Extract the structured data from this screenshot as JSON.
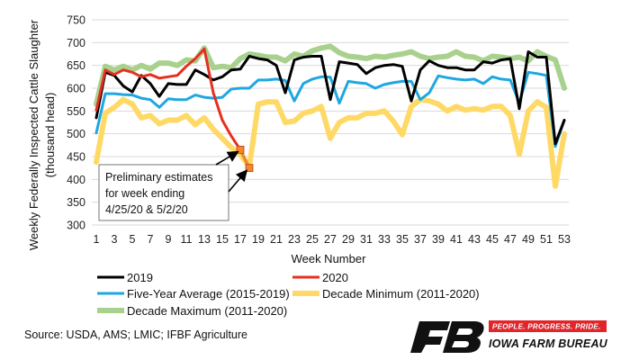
{
  "chart_data": {
    "type": "line",
    "ylabel": "Weekly Federally Inspected Cattle Slaughter",
    "ylabel_units": "(thousand head)",
    "xlabel": "Week Number",
    "ylim": [
      300,
      750
    ],
    "y_ticks": [
      300,
      350,
      400,
      450,
      500,
      550,
      600,
      650,
      700,
      750
    ],
    "xlim": [
      1,
      53
    ],
    "x_ticks": [
      1,
      3,
      5,
      7,
      9,
      11,
      13,
      15,
      17,
      19,
      21,
      23,
      25,
      27,
      29,
      31,
      33,
      35,
      37,
      39,
      41,
      43,
      45,
      47,
      49,
      51,
      53
    ],
    "series": [
      {
        "name": "Decade Maximum (2011-2020)",
        "color": "#a9d18e",
        "x": [
          1,
          2,
          3,
          4,
          5,
          6,
          7,
          8,
          9,
          10,
          11,
          12,
          13,
          14,
          15,
          16,
          17,
          18,
          19,
          20,
          21,
          22,
          23,
          24,
          25,
          26,
          27,
          28,
          29,
          30,
          31,
          32,
          33,
          34,
          35,
          36,
          37,
          38,
          39,
          40,
          41,
          42,
          43,
          44,
          45,
          46,
          47,
          48,
          49,
          50,
          51,
          52,
          53
        ],
        "values": [
          565,
          648,
          640,
          648,
          640,
          650,
          642,
          655,
          655,
          650,
          662,
          660,
          688,
          645,
          648,
          645,
          665,
          675,
          672,
          668,
          668,
          660,
          675,
          670,
          682,
          688,
          692,
          678,
          670,
          668,
          665,
          670,
          668,
          672,
          675,
          680,
          670,
          665,
          668,
          670,
          680,
          670,
          668,
          660,
          670,
          668,
          665,
          668,
          660,
          680,
          670,
          662,
          600
        ]
      },
      {
        "name": "Decade Minimum (2011-2020)",
        "color": "#ffd966",
        "x": [
          1,
          2,
          3,
          4,
          5,
          6,
          7,
          8,
          9,
          10,
          11,
          12,
          13,
          14,
          15,
          16,
          17,
          18,
          19,
          20,
          21,
          22,
          23,
          24,
          25,
          26,
          27,
          28,
          29,
          30,
          31,
          32,
          33,
          34,
          35,
          36,
          37,
          38,
          39,
          40,
          41,
          42,
          43,
          44,
          45,
          46,
          47,
          48,
          49,
          50,
          51,
          52,
          53
        ],
        "values": [
          438,
          545,
          558,
          575,
          565,
          535,
          540,
          522,
          530,
          530,
          540,
          520,
          535,
          510,
          490,
          470,
          455,
          428,
          565,
          570,
          570,
          525,
          528,
          545,
          550,
          560,
          490,
          525,
          535,
          535,
          545,
          545,
          550,
          528,
          498,
          560,
          575,
          572,
          565,
          550,
          560,
          552,
          555,
          552,
          560,
          560,
          540,
          455,
          550,
          570,
          558,
          385,
          500
        ]
      },
      {
        "name": "Five-Year Average (2015-2019)",
        "color": "#1fa7e1",
        "x": [
          1,
          2,
          3,
          4,
          5,
          6,
          7,
          8,
          9,
          10,
          11,
          12,
          13,
          14,
          15,
          16,
          17,
          18,
          19,
          20,
          21,
          22,
          23,
          24,
          25,
          26,
          27,
          28,
          29,
          30,
          31,
          32,
          33,
          34,
          35,
          36,
          37,
          38,
          39,
          40,
          41,
          42,
          43,
          44,
          45,
          46,
          47,
          48,
          49,
          50,
          51,
          52,
          53
        ],
        "values": [
          502,
          588,
          588,
          586,
          585,
          578,
          575,
          558,
          577,
          575,
          575,
          585,
          580,
          578,
          580,
          598,
          600,
          600,
          618,
          618,
          620,
          617,
          572,
          610,
          620,
          625,
          624,
          567,
          615,
          612,
          610,
          600,
          608,
          612,
          615,
          615,
          575,
          590,
          627,
          623,
          620,
          618,
          620,
          610,
          625,
          620,
          618,
          568,
          635,
          632,
          628,
          472,
          530
        ]
      },
      {
        "name": "2019",
        "color": "#000000",
        "x": [
          1,
          2,
          3,
          4,
          5,
          6,
          7,
          8,
          9,
          10,
          11,
          12,
          13,
          14,
          15,
          16,
          17,
          18,
          19,
          20,
          21,
          22,
          23,
          24,
          25,
          26,
          27,
          28,
          29,
          30,
          31,
          32,
          33,
          34,
          35,
          36,
          37,
          38,
          39,
          40,
          41,
          42,
          43,
          44,
          45,
          46,
          47,
          48,
          49,
          50,
          51,
          52,
          53
        ],
        "values": [
          535,
          635,
          628,
          605,
          592,
          628,
          610,
          582,
          610,
          608,
          608,
          640,
          630,
          618,
          625,
          640,
          642,
          670,
          665,
          662,
          650,
          590,
          662,
          668,
          670,
          670,
          575,
          658,
          655,
          652,
          632,
          645,
          650,
          652,
          648,
          572,
          640,
          660,
          650,
          645,
          645,
          640,
          640,
          658,
          655,
          662,
          665,
          555,
          680,
          668,
          668,
          478,
          530
        ]
      },
      {
        "name": "2020",
        "color": "#e53020",
        "x": [
          1,
          2,
          3,
          4,
          5,
          6,
          7,
          8,
          9,
          10,
          11,
          12,
          13,
          14,
          15,
          16,
          17,
          18
        ],
        "values": [
          552,
          640,
          630,
          640,
          635,
          625,
          630,
          622,
          625,
          628,
          648,
          665,
          686,
          590,
          530,
          495,
          465,
          425
        ]
      }
    ],
    "preliminary_points": {
      "color": "#f08a24",
      "x": [
        17,
        18
      ],
      "values": [
        465,
        425
      ]
    },
    "legend": {
      "position": "bottom",
      "entries": [
        "2019",
        "2020",
        "Five-Year Average (2015-2019)",
        "Decade Minimum (2011-2020)",
        "Decade Maximum (2011-2020)"
      ]
    },
    "annotation": {
      "lines": [
        "Preliminary estimates",
        "for week ending",
        "4/25/20 & 5/2/20"
      ]
    }
  },
  "source": "Source: USDA, AMS; LMIC; IFBF Agriculture",
  "brand": {
    "tagline": "PEOPLE. PROGRESS. PRIDE.",
    "name": "IOWA FARM BUREAU",
    "color": "#e0262b"
  }
}
